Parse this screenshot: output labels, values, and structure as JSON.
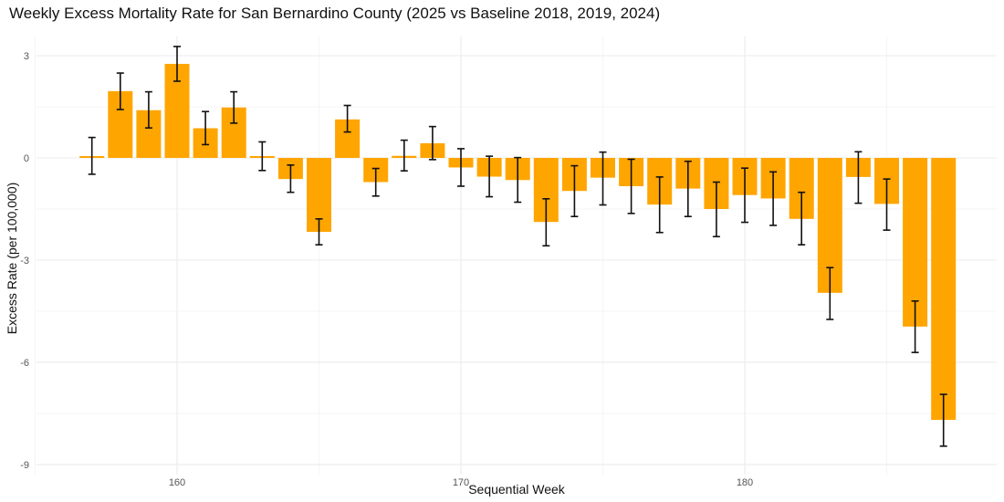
{
  "chart_data": {
    "type": "bar",
    "title": "Weekly Excess Mortality Rate for San Bernardino County (2025 vs Baseline 2018, 2019, 2024)",
    "xlabel": "Sequential Week",
    "ylabel": "Excess Rate (per 100,000)",
    "xlim": [
      155,
      189
    ],
    "ylim": [
      -9.3,
      3.4
    ],
    "xticks": [
      160,
      170,
      180
    ],
    "yticks": [
      3,
      0,
      -3,
      -6,
      -9
    ],
    "xtick_labels": [
      "160",
      "170",
      "180"
    ],
    "ytick_labels": [
      "3",
      "0",
      "-3",
      "-6",
      "-9"
    ],
    "grid": true,
    "bar_color": "#FFA500",
    "error_bar_color": "#111111",
    "x": [
      157,
      158,
      159,
      160,
      161,
      162,
      163,
      164,
      165,
      166,
      167,
      168,
      169,
      170,
      171,
      172,
      173,
      174,
      175,
      176,
      177,
      178,
      179,
      180,
      181,
      182,
      183,
      184,
      185,
      186,
      187
    ],
    "values": [
      0.04,
      1.96,
      1.4,
      2.76,
      0.87,
      1.48,
      0.04,
      -0.62,
      -2.17,
      1.13,
      -0.71,
      0.06,
      0.43,
      -0.28,
      -0.55,
      -0.65,
      -1.88,
      -0.97,
      -0.58,
      -0.83,
      -1.37,
      -0.9,
      -1.5,
      -1.09,
      -1.19,
      -1.79,
      -3.96,
      -0.56,
      -1.35,
      -4.95,
      -7.69
    ],
    "error_upper": [
      0.6,
      2.49,
      1.94,
      3.27,
      1.36,
      1.94,
      0.47,
      -0.21,
      -1.79,
      1.54,
      -0.31,
      0.52,
      0.92,
      0.27,
      0.05,
      0.01,
      -1.2,
      -0.23,
      0.17,
      -0.04,
      -0.56,
      -0.1,
      -0.71,
      -0.3,
      -0.41,
      -1.01,
      -3.22,
      0.18,
      -0.62,
      -4.2,
      -6.94
    ],
    "error_lower": [
      -0.48,
      1.42,
      0.88,
      2.25,
      0.39,
      1.02,
      -0.37,
      -1.01,
      -2.55,
      0.76,
      -1.12,
      -0.38,
      -0.05,
      -0.83,
      -1.14,
      -1.3,
      -2.58,
      -1.72,
      -1.38,
      -1.63,
      -2.19,
      -1.72,
      -2.31,
      -1.89,
      -1.98,
      -2.55,
      -4.74,
      -1.33,
      -2.12,
      -5.71,
      -8.46
    ]
  }
}
